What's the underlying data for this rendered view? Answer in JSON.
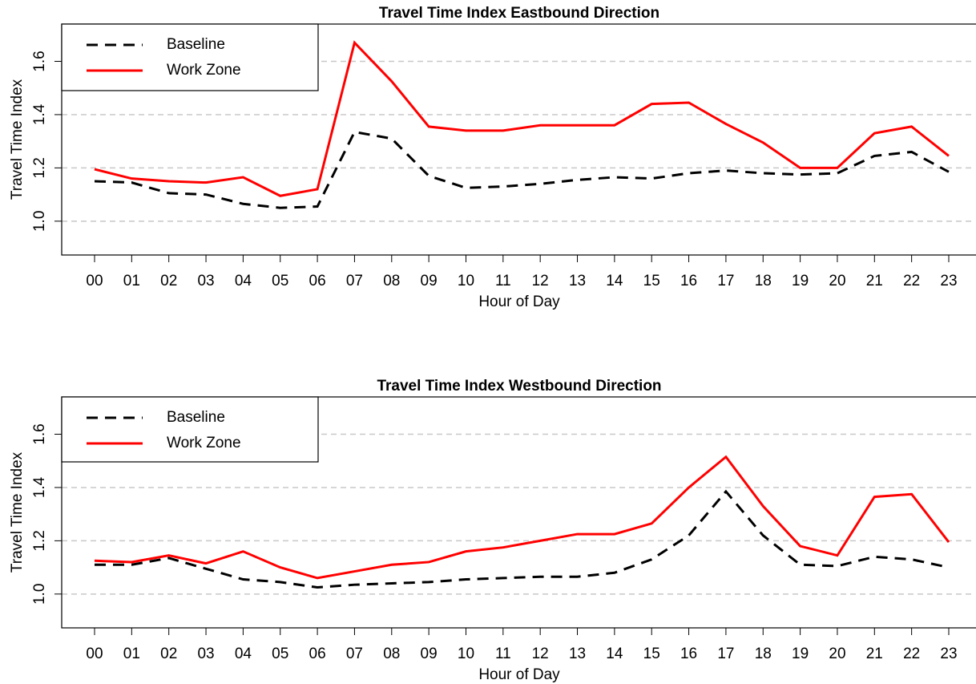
{
  "chart_data": [
    {
      "type": "line",
      "title": "Travel Time Index Eastbound Direction",
      "x_label": "Hour of Day",
      "y_label": "Travel Time Index",
      "categories": [
        "00",
        "01",
        "02",
        "03",
        "04",
        "05",
        "06",
        "07",
        "08",
        "09",
        "10",
        "11",
        "12",
        "13",
        "14",
        "15",
        "16",
        "17",
        "18",
        "19",
        "20",
        "21",
        "22",
        "23"
      ],
      "series": [
        {
          "name": "Baseline",
          "color": "#000000",
          "dash": true,
          "values": [
            1.15,
            1.145,
            1.105,
            1.1,
            1.065,
            1.05,
            1.055,
            1.335,
            1.31,
            1.17,
            1.125,
            1.13,
            1.14,
            1.155,
            1.165,
            1.16,
            1.18,
            1.19,
            1.18,
            1.175,
            1.18,
            1.245,
            1.26,
            1.185
          ]
        },
        {
          "name": "Work Zone",
          "color": "#ff0000",
          "dash": false,
          "values": [
            1.195,
            1.16,
            1.15,
            1.145,
            1.165,
            1.095,
            1.12,
            1.67,
            1.525,
            1.355,
            1.34,
            1.34,
            1.36,
            1.36,
            1.36,
            1.44,
            1.445,
            1.365,
            1.295,
            1.2,
            1.2,
            1.33,
            1.355,
            1.245
          ]
        }
      ],
      "ylim": [
        0.873,
        1.74
      ],
      "yticks": [
        {
          "value": 1.0,
          "label": "1.0"
        },
        1.2,
        1.4,
        1.6
      ],
      "grid": true,
      "legend": "top-left"
    },
    {
      "type": "line",
      "title": "Travel Time Index Westbound Direction",
      "x_label": "Hour of Day",
      "y_label": "Travel Time Index",
      "categories": [
        "00",
        "01",
        "02",
        "03",
        "04",
        "05",
        "06",
        "07",
        "08",
        "09",
        "10",
        "11",
        "12",
        "13",
        "14",
        "15",
        "16",
        "17",
        "18",
        "19",
        "20",
        "21",
        "22",
        "23"
      ],
      "series": [
        {
          "name": "Baseline",
          "color": "#000000",
          "dash": true,
          "values": [
            1.11,
            1.11,
            1.135,
            1.095,
            1.055,
            1.045,
            1.025,
            1.035,
            1.04,
            1.045,
            1.055,
            1.06,
            1.065,
            1.065,
            1.08,
            1.13,
            1.22,
            1.385,
            1.22,
            1.11,
            1.105,
            1.14,
            1.13,
            1.1
          ]
        },
        {
          "name": "Work Zone",
          "color": "#ff0000",
          "dash": false,
          "values": [
            1.125,
            1.12,
            1.145,
            1.115,
            1.16,
            1.1,
            1.06,
            1.085,
            1.11,
            1.12,
            1.16,
            1.175,
            1.2,
            1.225,
            1.225,
            1.265,
            1.4,
            1.515,
            1.33,
            1.18,
            1.145,
            1.365,
            1.375,
            1.195
          ]
        }
      ],
      "ylim": [
        0.873,
        1.74
      ],
      "yticks": [
        {
          "value": 1.0,
          "label": "1.0"
        },
        1.2,
        1.4,
        1.6
      ],
      "grid": true,
      "legend": "top-left"
    }
  ]
}
